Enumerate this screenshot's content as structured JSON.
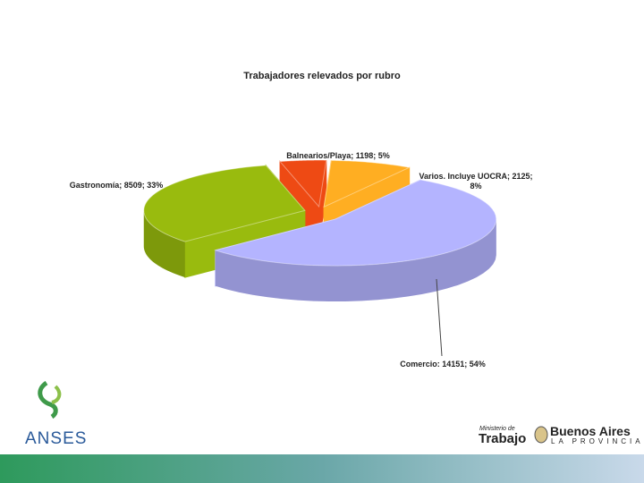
{
  "chart_data": {
    "type": "pie",
    "title": "Trabajadores relevados por rubro",
    "values": [
      1198,
      2125,
      14151,
      8509
    ],
    "value_labels": [
      "Balnearios/Playa; 1198; 5%",
      "Varios. Incluye UOCRA; 2125; 8%",
      "Comercio: 14151; 54%",
      "Gastronomía; 8509; 33%"
    ],
    "colors": [
      "#ee4a14",
      "#ffae22",
      "#b4b4ff",
      "#99bb0e"
    ]
  },
  "logos": {
    "anses": "ANSES",
    "ministerio": "Ministerio de",
    "trabajo": "Trabajo",
    "buenos_aires": "Buenos Aires",
    "provincia": "LA PROVINCIA"
  }
}
